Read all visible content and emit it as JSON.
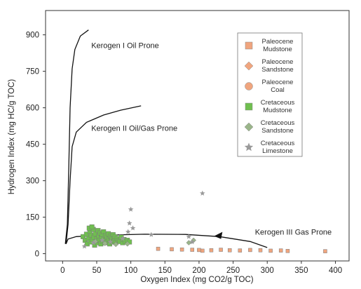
{
  "chart_data": {
    "type": "scatter",
    "xlabel": "Oxygen Index (mg CO2/g TOC)",
    "ylabel": "Hydrogen Index (mg HC/g TOC)",
    "xlim": [
      -25,
      420
    ],
    "ylim": [
      -30,
      1000
    ],
    "xticks": [
      0,
      50,
      100,
      150,
      200,
      250,
      300,
      350,
      400
    ],
    "yticks": [
      0,
      150,
      300,
      450,
      600,
      750,
      900
    ],
    "grid": false,
    "legend": "top-right",
    "curves": [
      {
        "label": "Kerogen I Oil Prone",
        "points": [
          [
            4,
            40
          ],
          [
            7,
            120
          ],
          [
            9,
            350
          ],
          [
            11,
            600
          ],
          [
            14,
            760
          ],
          [
            18,
            840
          ],
          [
            26,
            895
          ],
          [
            38,
            920
          ]
        ]
      },
      {
        "label": "Kerogen II Oil/Gas Prone",
        "points": [
          [
            5,
            40
          ],
          [
            8,
            120
          ],
          [
            11,
            300
          ],
          [
            14,
            440
          ],
          [
            20,
            500
          ],
          [
            35,
            540
          ],
          [
            60,
            570
          ],
          [
            85,
            590
          ],
          [
            115,
            608
          ]
        ]
      },
      {
        "label": "Kerogen III Gas Prone",
        "points": [
          [
            5,
            40
          ],
          [
            8,
            60
          ],
          [
            20,
            70
          ],
          [
            60,
            76
          ],
          [
            120,
            80
          ],
          [
            180,
            79
          ],
          [
            230,
            70
          ],
          [
            275,
            50
          ],
          [
            300,
            25
          ]
        ]
      }
    ],
    "curve_label_anchor": [
      [
        42,
        845
      ],
      [
        42,
        505
      ],
      [
        282,
        78
      ]
    ],
    "series": [
      {
        "name": "Paleocene\nMudstone",
        "marker": "square",
        "color": "#f0a57e",
        "points": [
          [
            200,
            15
          ],
          [
            205,
            12
          ],
          [
            218,
            14
          ],
          [
            232,
            16
          ],
          [
            245,
            14
          ],
          [
            260,
            13
          ],
          [
            275,
            15
          ],
          [
            290,
            14
          ],
          [
            305,
            12
          ],
          [
            320,
            13
          ],
          [
            330,
            11
          ],
          [
            385,
            10
          ],
          [
            140,
            20
          ],
          [
            160,
            18
          ],
          [
            175,
            17
          ],
          [
            190,
            16
          ]
        ]
      },
      {
        "name": "Paleocene\nSandstone",
        "marker": "diamond",
        "color": "#f0a57e",
        "points": []
      },
      {
        "name": "Paleocene\nCoal",
        "marker": "circle",
        "color": "#f0a57e",
        "points": []
      },
      {
        "name": "Cretaceous\nMudstone",
        "marker": "square",
        "color": "#6fbf4f",
        "points": [
          [
            30,
            70
          ],
          [
            33,
            55
          ],
          [
            35,
            80
          ],
          [
            36,
            40
          ],
          [
            38,
            62
          ],
          [
            40,
            90
          ],
          [
            41,
            48
          ],
          [
            42,
            75
          ],
          [
            44,
            58
          ],
          [
            45,
            100
          ],
          [
            46,
            68
          ],
          [
            47,
            35
          ],
          [
            48,
            82
          ],
          [
            50,
            60
          ],
          [
            51,
            45
          ],
          [
            52,
            95
          ],
          [
            53,
            72
          ],
          [
            54,
            55
          ],
          [
            55,
            85
          ],
          [
            56,
            40
          ],
          [
            57,
            65
          ],
          [
            58,
            78
          ],
          [
            59,
            52
          ],
          [
            60,
            90
          ],
          [
            61,
            62
          ],
          [
            62,
            45
          ],
          [
            63,
            75
          ],
          [
            64,
            58
          ],
          [
            65,
            68
          ],
          [
            66,
            50
          ],
          [
            67,
            82
          ],
          [
            68,
            60
          ],
          [
            69,
            40
          ],
          [
            70,
            72
          ],
          [
            71,
            55
          ],
          [
            72,
            65
          ],
          [
            73,
            48
          ],
          [
            74,
            78
          ],
          [
            75,
            60
          ],
          [
            76,
            52
          ],
          [
            77,
            70
          ],
          [
            78,
            45
          ],
          [
            80,
            62
          ],
          [
            82,
            55
          ],
          [
            84,
            50
          ],
          [
            86,
            68
          ],
          [
            88,
            45
          ],
          [
            90,
            58
          ],
          [
            92,
            50
          ],
          [
            95,
            55
          ],
          [
            98,
            48
          ],
          [
            39,
            105
          ],
          [
            43,
            110
          ]
        ]
      },
      {
        "name": "Cretaceous\nSandstone",
        "marker": "diamond",
        "color": "#9ab58a",
        "points": [
          [
            48,
            50
          ],
          [
            62,
            42
          ],
          [
            78,
            38
          ],
          [
            95,
            40
          ],
          [
            185,
            45
          ],
          [
            192,
            55
          ]
        ]
      },
      {
        "name": "Cretaceous\nLimestone",
        "marker": "star",
        "color": "#9a9a9a",
        "points": [
          [
            32,
            30
          ],
          [
            45,
            45
          ],
          [
            58,
            55
          ],
          [
            70,
            48
          ],
          [
            88,
            62
          ],
          [
            96,
            90
          ],
          [
            98,
            125
          ],
          [
            100,
            182
          ],
          [
            103,
            105
          ],
          [
            130,
            78
          ],
          [
            185,
            70
          ],
          [
            190,
            48
          ],
          [
            205,
            248
          ]
        ]
      }
    ]
  }
}
